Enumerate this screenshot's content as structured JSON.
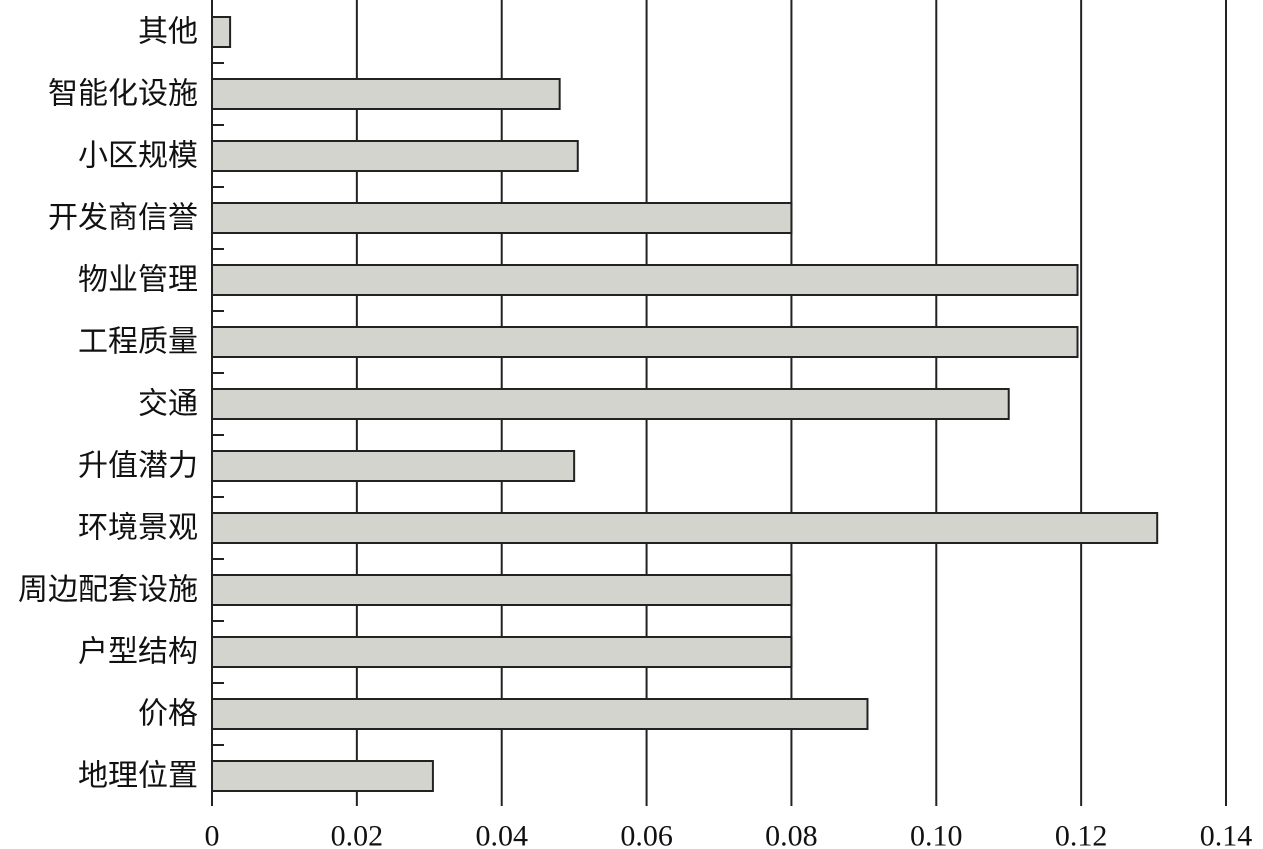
{
  "chart_data": {
    "type": "bar",
    "orientation": "horizontal",
    "categories": [
      "其他",
      "智能化设施",
      "小区规模",
      "开发商信誉",
      "物业管理",
      "工程质量",
      "交通",
      "升值潜力",
      "环境景观",
      "周边配套设施",
      "户型结构",
      "价格",
      "地理位置"
    ],
    "values": [
      0.0025,
      0.048,
      0.0505,
      0.08,
      0.1195,
      0.1195,
      0.11,
      0.05,
      0.1305,
      0.08,
      0.08,
      0.0905,
      0.0305
    ],
    "xlim": [
      0,
      0.14
    ],
    "x_ticks": [
      "0",
      "0.02",
      "0.04",
      "0.06",
      "0.08",
      "0.10",
      "0.12",
      "0.14"
    ],
    "x_tick_values": [
      0,
      0.02,
      0.04,
      0.06,
      0.08,
      0.1,
      0.12,
      0.14
    ],
    "grid": true,
    "bar_color": "#d4d4cf",
    "line_color": "#222222"
  }
}
